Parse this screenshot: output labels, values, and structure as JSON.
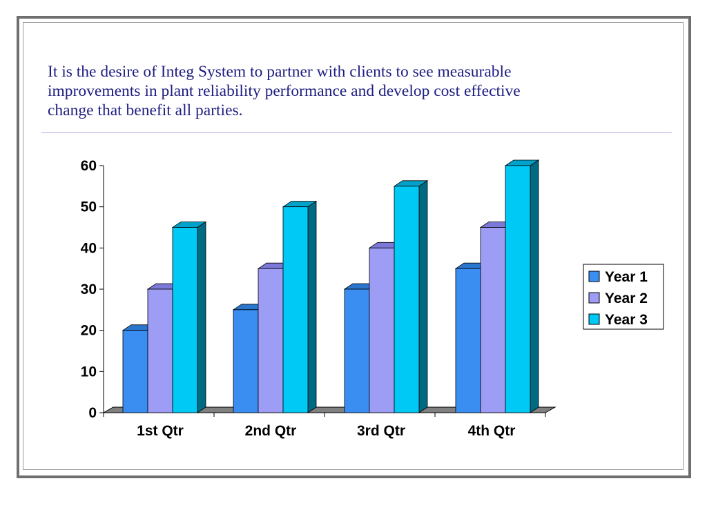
{
  "slide": {
    "title_lines": [
      "It is the desire of Integ System to partner with clients to see measurable",
      "improvements in plant reliability performance and develop cost effective",
      "change that benefit all parties."
    ]
  },
  "colors": {
    "title_text": "#1e1e82",
    "frame": "#6f6f6f",
    "rule": "#a9a9dc",
    "floor": "#808080"
  },
  "chart_data": {
    "type": "bar",
    "style": "3d-clustered-column",
    "title": "",
    "xlabel": "",
    "ylabel": "",
    "categories": [
      "1st Qtr",
      "2nd Qtr",
      "3rd Qtr",
      "4th Qtr"
    ],
    "series": [
      {
        "name": "Year 1",
        "values": [
          20,
          25,
          30,
          35
        ],
        "color": "#3a8ef2",
        "top_color": "#2a76cc",
        "side_color": "#1f5fa8"
      },
      {
        "name": "Year 2",
        "values": [
          30,
          35,
          40,
          45
        ],
        "color": "#9d9df5",
        "top_color": "#7b78d8",
        "side_color": "#6562b8"
      },
      {
        "name": "Year 3",
        "values": [
          45,
          50,
          55,
          60
        ],
        "color": "#00c9f5",
        "top_color": "#00a2c9",
        "side_color": "#006a82"
      }
    ],
    "ylim": [
      0,
      60
    ],
    "yticks": [
      0,
      10,
      20,
      30,
      40,
      50,
      60
    ],
    "grid": false,
    "legend": "right"
  }
}
